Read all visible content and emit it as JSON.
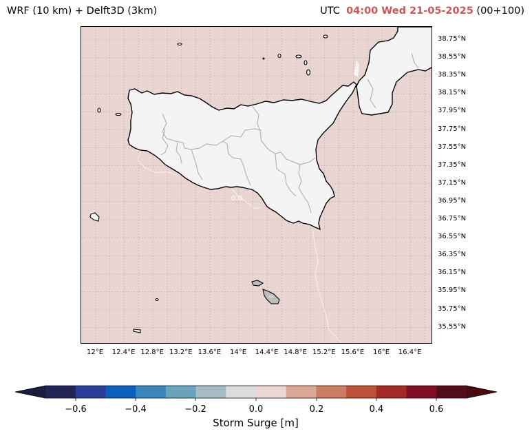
{
  "header": {
    "left_title": "WRF (10 km) + Delft3D (3km)",
    "right_prefix": "UTC",
    "right_highlight": "04:00 Wed 21-05-2025",
    "right_suffix": "(00+100)"
  },
  "map": {
    "sea_color": "#e9d6d3",
    "land_color": "#f4f4f4",
    "coast_color": "#000000",
    "province_color": "#a8a8a8",
    "grid_color": "#b8a8a6",
    "contour_label_1": "0.0",
    "contour_label_2": "0.0",
    "lat_labels": [
      "38.75°N",
      "38.55°N",
      "38.35°N",
      "38.15°N",
      "37.95°N",
      "37.75°N",
      "37.55°N",
      "37.35°N",
      "37.15°N",
      "36.95°N",
      "36.75°N",
      "36.55°N",
      "36.35°N",
      "36.15°N",
      "35.95°N",
      "35.75°N",
      "35.55°N"
    ],
    "lon_labels": [
      "12°E",
      "12.4°E",
      "12.8°E",
      "13.2°E",
      "13.6°E",
      "14°E",
      "14.4°E",
      "14.8°E",
      "15.2°E",
      "15.6°E",
      "16°E",
      "16.4°E"
    ]
  },
  "colorbar": {
    "label": "Storm Surge [m]",
    "ticks": [
      "−0.6",
      "−0.4",
      "−0.2",
      "0.0",
      "0.2",
      "0.4",
      "0.6"
    ],
    "colors": [
      "#1f2454",
      "#2a3d96",
      "#0b5fbd",
      "#3a86ba",
      "#6aa3bc",
      "#a6bcc7",
      "#dcdcdc",
      "#ebd7d4",
      "#dca895",
      "#cc7c63",
      "#bb5238",
      "#a32a26",
      "#7f0f25",
      "#520d1a"
    ],
    "extend_min_color": "#1a1c3e",
    "extend_max_color": "#4a0a14"
  }
}
